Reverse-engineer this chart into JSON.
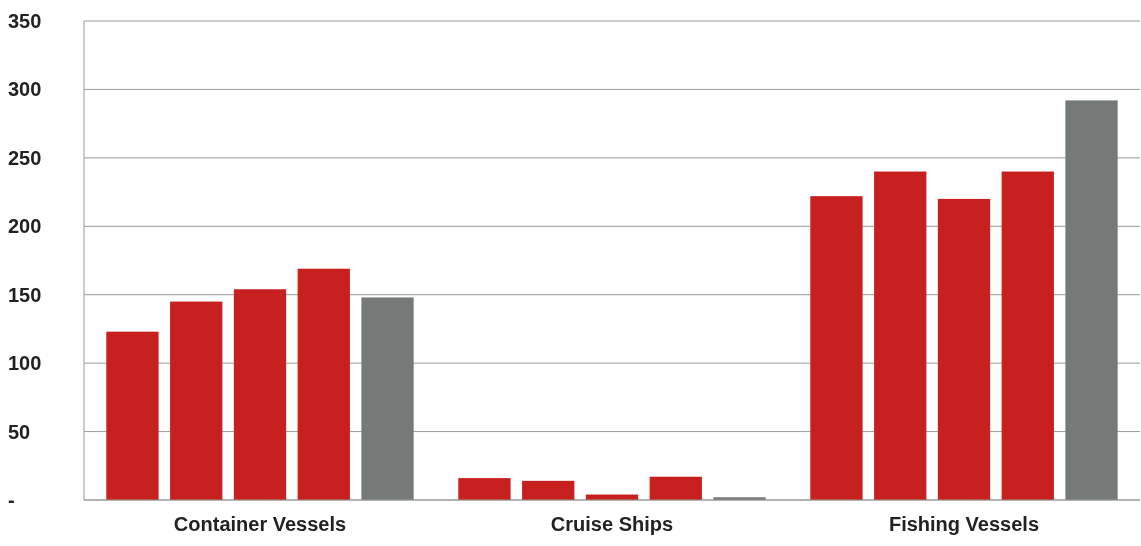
{
  "chart_data": {
    "type": "bar",
    "categories": [
      "Container Vessels",
      "Cruise Ships",
      "Fishing Vessels"
    ],
    "series": [
      {
        "color": "#c8201f",
        "values": [
          123,
          16,
          222
        ]
      },
      {
        "color": "#c8201f",
        "values": [
          145,
          14,
          240
        ]
      },
      {
        "color": "#c8201f",
        "values": [
          154,
          4,
          220
        ]
      },
      {
        "color": "#c8201f",
        "values": [
          169,
          17,
          240
        ]
      },
      {
        "color": "#757a79",
        "values": [
          148,
          2,
          292
        ]
      }
    ],
    "ylim": [
      0,
      350
    ],
    "yticks": [
      {
        "value": 0,
        "label": "-"
      },
      50,
      100,
      150,
      200,
      250,
      300,
      350
    ],
    "grid": "y"
  }
}
